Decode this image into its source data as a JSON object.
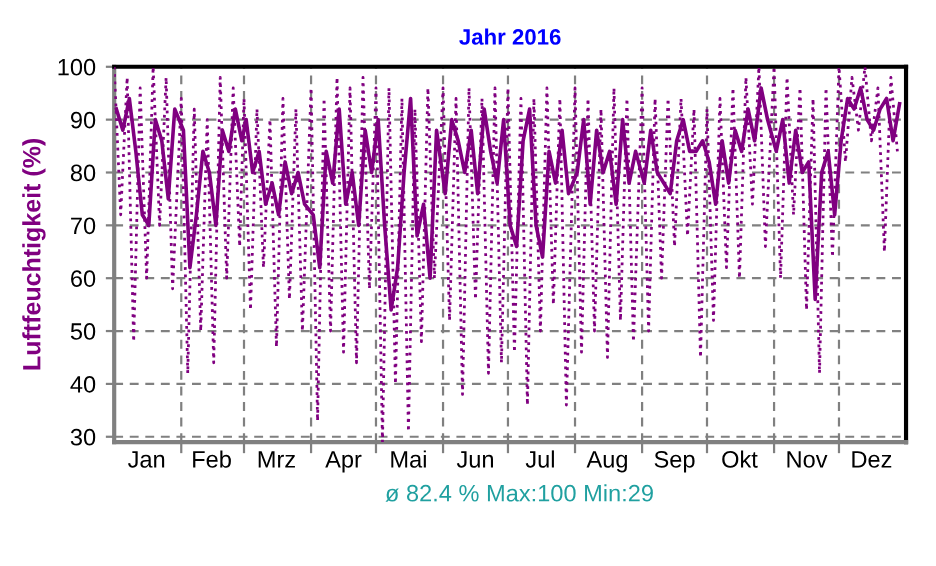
{
  "chart_data": {
    "type": "line",
    "title": "Jahr 2016",
    "ylabel": "Luftfeuchtigkeit (%)",
    "annotations": [
      "ø 82.4 % Max:100 Min:29"
    ],
    "xlim": [
      "2016-01-01",
      "2017-01-01"
    ],
    "xticks": [
      {
        "value": "2016-02-01",
        "label": null
      },
      {
        "value": "2016-03-01",
        "label": null
      },
      {
        "value": "2016-04-01",
        "label": null
      },
      {
        "value": "2016-05-01",
        "label": null
      },
      {
        "value": "2016-06-01",
        "label": null
      },
      {
        "value": "2016-07-01",
        "label": null
      },
      {
        "value": "2016-08-01",
        "label": null
      },
      {
        "value": "2016-09-01",
        "label": null
      },
      {
        "value": "2016-10-01",
        "label": null
      },
      {
        "value": "2016-11-01",
        "label": null
      },
      {
        "value": "2016-12-01",
        "label": null
      },
      {
        "value": "2016-01-16",
        "label": "Jan"
      },
      {
        "value": "2016-02-15",
        "label": "Feb"
      },
      {
        "value": "2016-03-16",
        "label": "Mrz"
      },
      {
        "value": "2016-04-16",
        "label": "Apr"
      },
      {
        "value": "2016-05-16",
        "label": "Mai"
      },
      {
        "value": "2016-06-16",
        "label": "Jun"
      },
      {
        "value": "2016-07-16",
        "label": "Jul"
      },
      {
        "value": "2016-08-16",
        "label": "Aug"
      },
      {
        "value": "2016-09-16",
        "label": "Sep"
      },
      {
        "value": "2016-10-16",
        "label": "Okt"
      },
      {
        "value": "2016-11-16",
        "label": "Nov"
      },
      {
        "value": "2016-12-16",
        "label": "Dez"
      }
    ],
    "ylim": [
      29,
      100
    ],
    "yticks": [
      30,
      40,
      50,
      60,
      70,
      80,
      90,
      100
    ],
    "grid": true,
    "legend": false,
    "series": [
      {
        "color": "#800080",
        "line_style": "solid",
        "x": [
          "2016-01-02",
          "2016-01-05",
          "2016-01-08",
          "2016-01-11",
          "2016-01-14",
          "2016-01-17",
          "2016-01-20",
          "2016-01-23",
          "2016-01-26",
          "2016-01-29",
          "2016-02-02",
          "2016-02-05",
          "2016-02-08",
          "2016-02-11",
          "2016-02-14",
          "2016-02-17",
          "2016-02-20",
          "2016-02-23",
          "2016-02-26",
          "2016-02-29",
          "2016-03-02",
          "2016-03-05",
          "2016-03-08",
          "2016-03-11",
          "2016-03-14",
          "2016-03-17",
          "2016-03-20",
          "2016-03-23",
          "2016-03-26",
          "2016-03-29",
          "2016-04-02",
          "2016-04-05",
          "2016-04-08",
          "2016-04-11",
          "2016-04-14",
          "2016-04-17",
          "2016-04-20",
          "2016-04-23",
          "2016-04-26",
          "2016-04-29",
          "2016-05-02",
          "2016-05-05",
          "2016-05-08",
          "2016-05-11",
          "2016-05-14",
          "2016-05-17",
          "2016-05-20",
          "2016-05-23",
          "2016-05-26",
          "2016-05-29",
          "2016-06-02",
          "2016-06-05",
          "2016-06-08",
          "2016-06-11",
          "2016-06-14",
          "2016-06-17",
          "2016-06-20",
          "2016-06-23",
          "2016-06-26",
          "2016-06-29",
          "2016-07-02",
          "2016-07-05",
          "2016-07-08",
          "2016-07-11",
          "2016-07-14",
          "2016-07-17",
          "2016-07-20",
          "2016-07-23",
          "2016-07-26",
          "2016-07-29",
          "2016-08-02",
          "2016-08-05",
          "2016-08-08",
          "2016-08-11",
          "2016-08-14",
          "2016-08-17",
          "2016-08-20",
          "2016-08-23",
          "2016-08-26",
          "2016-08-29",
          "2016-09-02",
          "2016-09-05",
          "2016-09-08",
          "2016-09-11",
          "2016-09-14",
          "2016-09-17",
          "2016-09-20",
          "2016-09-23",
          "2016-09-26",
          "2016-09-29",
          "2016-10-02",
          "2016-10-05",
          "2016-10-08",
          "2016-10-11",
          "2016-10-14",
          "2016-10-17",
          "2016-10-20",
          "2016-10-23",
          "2016-10-26",
          "2016-10-29",
          "2016-11-02",
          "2016-11-05",
          "2016-11-08",
          "2016-11-11",
          "2016-11-14",
          "2016-11-17",
          "2016-11-20",
          "2016-11-23",
          "2016-11-26",
          "2016-11-29",
          "2016-12-02",
          "2016-12-05",
          "2016-12-08",
          "2016-12-11",
          "2016-12-14",
          "2016-12-17",
          "2016-12-20",
          "2016-12-23",
          "2016-12-26",
          "2016-12-29"
        ],
        "values": [
          92,
          88,
          94,
          84,
          72,
          70,
          90,
          86,
          75,
          92,
          88,
          62,
          72,
          84,
          80,
          70,
          88,
          84,
          92,
          86,
          90,
          80,
          84,
          74,
          78,
          72,
          82,
          76,
          80,
          74,
          72,
          62,
          84,
          78,
          92,
          74,
          80,
          70,
          88,
          80,
          90,
          70,
          54,
          62,
          80,
          94,
          68,
          74,
          60,
          88,
          76,
          90,
          86,
          80,
          88,
          76,
          92,
          84,
          78,
          90,
          70,
          66,
          86,
          92,
          70,
          64,
          84,
          78,
          88,
          76,
          80,
          90,
          74,
          88,
          80,
          84,
          74,
          90,
          78,
          84,
          78,
          88,
          80,
          78,
          76,
          86,
          90,
          84,
          84,
          86,
          82,
          74,
          86,
          78,
          88,
          84,
          92,
          86,
          96,
          90,
          84,
          90,
          78,
          88,
          80,
          82,
          56,
          80,
          84,
          72,
          86,
          94,
          92,
          96,
          90,
          88,
          92,
          94,
          86,
          93
        ]
      },
      {
        "color": "#800080",
        "line_style": "dotted",
        "x": [
          "2016-01-01",
          "2016-01-04",
          "2016-01-07",
          "2016-01-10",
          "2016-01-13",
          "2016-01-16",
          "2016-01-19",
          "2016-01-22",
          "2016-01-25",
          "2016-01-28",
          "2016-02-01",
          "2016-02-04",
          "2016-02-07",
          "2016-02-10",
          "2016-02-13",
          "2016-02-16",
          "2016-02-19",
          "2016-02-22",
          "2016-02-25",
          "2016-02-28",
          "2016-03-01",
          "2016-03-04",
          "2016-03-07",
          "2016-03-10",
          "2016-03-13",
          "2016-03-16",
          "2016-03-19",
          "2016-03-22",
          "2016-03-25",
          "2016-03-28",
          "2016-04-01",
          "2016-04-04",
          "2016-04-07",
          "2016-04-10",
          "2016-04-13",
          "2016-04-16",
          "2016-04-19",
          "2016-04-22",
          "2016-04-25",
          "2016-04-28",
          "2016-05-01",
          "2016-05-04",
          "2016-05-07",
          "2016-05-10",
          "2016-05-13",
          "2016-05-16",
          "2016-05-19",
          "2016-05-22",
          "2016-05-25",
          "2016-05-28",
          "2016-06-01",
          "2016-06-04",
          "2016-06-07",
          "2016-06-10",
          "2016-06-13",
          "2016-06-16",
          "2016-06-19",
          "2016-06-22",
          "2016-06-25",
          "2016-06-28",
          "2016-07-01",
          "2016-07-04",
          "2016-07-07",
          "2016-07-10",
          "2016-07-13",
          "2016-07-16",
          "2016-07-19",
          "2016-07-22",
          "2016-07-25",
          "2016-07-28",
          "2016-08-01",
          "2016-08-04",
          "2016-08-07",
          "2016-08-10",
          "2016-08-13",
          "2016-08-16",
          "2016-08-19",
          "2016-08-22",
          "2016-08-25",
          "2016-08-28",
          "2016-09-01",
          "2016-09-04",
          "2016-09-07",
          "2016-09-10",
          "2016-09-13",
          "2016-09-16",
          "2016-09-19",
          "2016-09-22",
          "2016-09-25",
          "2016-09-28",
          "2016-10-01",
          "2016-10-04",
          "2016-10-07",
          "2016-10-10",
          "2016-10-13",
          "2016-10-16",
          "2016-10-19",
          "2016-10-22",
          "2016-10-25",
          "2016-10-28",
          "2016-11-01",
          "2016-11-04",
          "2016-11-07",
          "2016-11-10",
          "2016-11-13",
          "2016-11-16",
          "2016-11-19",
          "2016-11-22",
          "2016-11-25",
          "2016-11-28",
          "2016-12-01",
          "2016-12-04",
          "2016-12-07",
          "2016-12-10",
          "2016-12-13",
          "2016-12-16",
          "2016-12-19",
          "2016-12-22",
          "2016-12-25",
          "2016-12-28"
        ],
        "values": [
          100,
          72,
          98,
          48,
          96,
          60,
          100,
          70,
          98,
          58,
          94,
          42,
          92,
          50,
          90,
          44,
          98,
          60,
          96,
          66,
          94,
          54,
          92,
          62,
          90,
          47,
          94,
          56,
          92,
          50,
          96,
          33,
          94,
          50,
          98,
          46,
          96,
          44,
          98,
          58,
          96,
          29,
          96,
          40,
          94,
          31,
          92,
          48,
          96,
          60,
          96,
          52,
          94,
          38,
          96,
          56,
          94,
          42,
          96,
          44,
          96,
          46,
          94,
          36,
          94,
          50,
          96,
          55,
          94,
          36,
          96,
          46,
          94,
          50,
          92,
          45,
          96,
          52,
          94,
          48,
          96,
          50,
          94,
          60,
          94,
          66,
          94,
          68,
          92,
          45,
          92,
          52,
          94,
          62,
          96,
          60,
          98,
          74,
          100,
          66,
          100,
          60,
          98,
          72,
          96,
          54,
          94,
          42,
          96,
          64,
          100,
          82,
          98,
          88,
          100,
          86,
          96,
          65,
          98,
          84
        ]
      }
    ]
  }
}
